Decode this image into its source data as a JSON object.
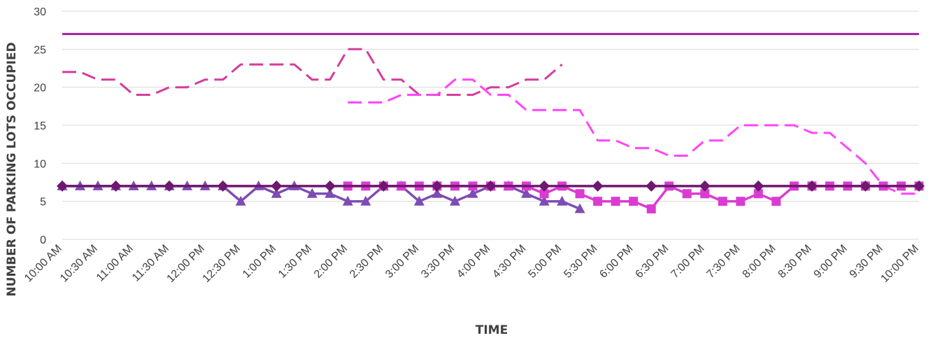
{
  "chart_data": {
    "type": "line",
    "title": "",
    "xlabel": "TIME",
    "ylabel": "NUMBER OF PARKING LOTS OCCUPIED",
    "ylim": [
      0,
      30
    ],
    "yticks": [
      0,
      5,
      10,
      15,
      20,
      25,
      30
    ],
    "grid": true,
    "categories": [
      "10:00 AM",
      "10:15 AM",
      "10:30 AM",
      "10:45 AM",
      "11:00 AM",
      "11:15 AM",
      "11:30 AM",
      "11:45 AM",
      "12:00 PM",
      "12:15 PM",
      "12:30 PM",
      "12:45 PM",
      "1:00 PM",
      "1:15 PM",
      "1:30 PM",
      "1:45 PM",
      "2:00 PM",
      "2:15 PM",
      "2:30 PM",
      "2:45 PM",
      "3:00 PM",
      "3:15 PM",
      "3:30 PM",
      "3:45 PM",
      "4:00 PM",
      "4:15 PM",
      "4:30 PM",
      "4:45 PM",
      "5:00 PM",
      "5:15 PM",
      "5:30 PM",
      "5:45 PM",
      "6:00 PM",
      "6:15 PM",
      "6:30 PM",
      "6:45 PM",
      "7:00 PM",
      "7:15 PM",
      "7:30 PM",
      "7:45 PM",
      "8:00 PM",
      "8:15 PM",
      "8:30 PM",
      "8:45 PM",
      "9:00 PM",
      "9:15 PM",
      "9:30 PM",
      "9:45 PM",
      "10:00 PM"
    ],
    "tick_labels": [
      "10:00 AM",
      "10:30 AM",
      "11:00 AM",
      "11:30 AM",
      "12:00 PM",
      "12:30 PM",
      "1:00 PM",
      "1:30 PM",
      "2:00 PM",
      "2:30 PM",
      "3:00 PM",
      "3:30 PM",
      "4:00 PM",
      "4:30 PM",
      "5:00 PM",
      "5:30 PM",
      "6:00 PM",
      "6:30 PM",
      "7:00 PM",
      "7:30 PM",
      "8:00 PM",
      "8:30 PM",
      "9:00 PM",
      "9:30 PM",
      "10:00 PM"
    ],
    "series": [
      {
        "color": "#a020a0",
        "style": "solid",
        "marker": "none",
        "values": [
          27,
          27,
          27,
          27,
          27,
          27,
          27,
          27,
          27,
          27,
          27,
          27,
          27,
          27,
          27,
          27,
          27,
          27,
          27,
          27,
          27,
          27,
          27,
          27,
          27,
          27,
          27,
          27,
          27,
          27,
          27,
          27,
          27,
          27,
          27,
          27,
          27,
          27,
          27,
          27,
          27,
          27,
          27,
          27,
          27,
          27,
          27,
          27,
          27
        ]
      },
      {
        "color": "#d43c9c",
        "style": "dashed",
        "marker": "none",
        "values": [
          22,
          22,
          21,
          21,
          19,
          19,
          20,
          20,
          21,
          21,
          23,
          23,
          23,
          23,
          21,
          21,
          25,
          25,
          21,
          21,
          19,
          19,
          19,
          19,
          20,
          20,
          21,
          21,
          23,
          null,
          null,
          null,
          null,
          null,
          null,
          null,
          null,
          null,
          null,
          null,
          null,
          null,
          null,
          null,
          null,
          null,
          null,
          null,
          null
        ]
      },
      {
        "color": "#ff44ff",
        "style": "dashed",
        "marker": "none",
        "values": [
          null,
          null,
          null,
          null,
          null,
          null,
          null,
          null,
          null,
          null,
          null,
          null,
          null,
          null,
          null,
          null,
          18,
          18,
          18,
          19,
          19,
          19,
          21,
          21,
          19,
          19,
          17,
          17,
          17,
          17,
          13,
          13,
          12,
          12,
          11,
          11,
          13,
          13,
          15,
          15,
          15,
          15,
          14,
          14,
          12,
          10,
          7,
          6,
          6
        ]
      },
      {
        "color": "#7d4cb4",
        "style": "solid",
        "marker": "triangle",
        "values": [
          7,
          7,
          7,
          7,
          7,
          7,
          7,
          7,
          7,
          7,
          5,
          7,
          6,
          7,
          6,
          6,
          5,
          5,
          7,
          7,
          5,
          6,
          5,
          6,
          7,
          7,
          6,
          5,
          5,
          4,
          null,
          null,
          null,
          null,
          null,
          null,
          null,
          null,
          null,
          null,
          null,
          null,
          null,
          null,
          null,
          null,
          null,
          null,
          null
        ]
      },
      {
        "color": "#da3cd2",
        "style": "solid",
        "marker": "square",
        "values": [
          null,
          null,
          null,
          null,
          null,
          null,
          null,
          null,
          null,
          null,
          null,
          null,
          null,
          null,
          null,
          null,
          7,
          7,
          7,
          7,
          7,
          7,
          7,
          7,
          7,
          7,
          7,
          6,
          7,
          6,
          5,
          5,
          5,
          4,
          7,
          6,
          6,
          5,
          5,
          6,
          5,
          7,
          7,
          7,
          7,
          7,
          7,
          7,
          7
        ]
      },
      {
        "color": "#6e186e",
        "style": "solid",
        "marker": "diamond",
        "values": [
          7,
          7,
          7,
          7,
          7,
          7,
          7,
          7,
          7,
          7,
          7,
          7,
          7,
          7,
          7,
          7,
          7,
          7,
          7,
          7,
          7,
          7,
          7,
          7,
          7,
          7,
          7,
          7,
          7,
          7,
          7,
          7,
          7,
          7,
          7,
          7,
          7,
          7,
          7,
          7,
          7,
          7,
          7,
          7,
          7,
          7,
          7,
          7,
          7
        ]
      }
    ],
    "markers_at": {
      "diamond": [
        0,
        3,
        6,
        9,
        12,
        15,
        18,
        21,
        24,
        27,
        30,
        33,
        36,
        39,
        42,
        45,
        48
      ],
      "triangle": "all",
      "square": "all"
    }
  }
}
